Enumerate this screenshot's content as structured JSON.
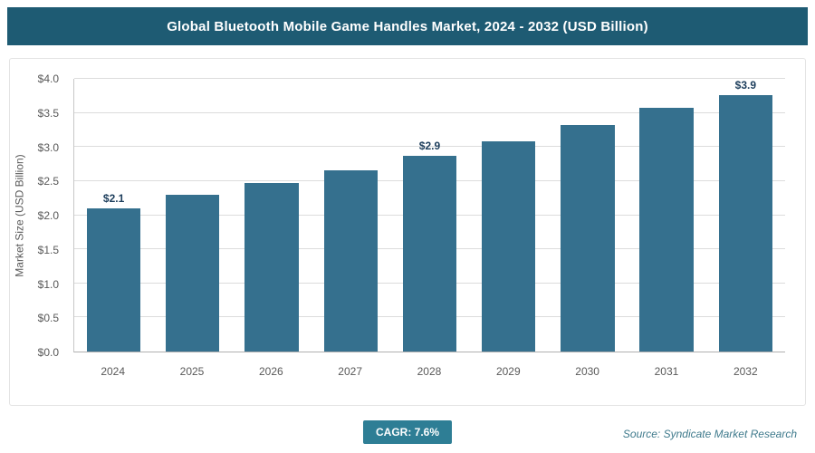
{
  "header": {
    "title": "Global Bluetooth Mobile Game Handles Market, 2024 - 2032 (USD Billion)"
  },
  "chart_data": {
    "type": "bar",
    "title": "Global Bluetooth Mobile Game Handles Market, 2024 - 2032 (USD Billion)",
    "categories": [
      "2024",
      "2025",
      "2026",
      "2027",
      "2028",
      "2029",
      "2030",
      "2031",
      "2032"
    ],
    "values": [
      2.1,
      2.3,
      2.47,
      2.66,
      2.87,
      3.08,
      3.32,
      3.57,
      3.85
    ],
    "data_labels": [
      "$2.1",
      null,
      null,
      null,
      "$2.9",
      null,
      null,
      null,
      "$3.9"
    ],
    "xlabel": "",
    "ylabel": "Market Size (USD Billion)",
    "ylim": [
      0,
      4
    ],
    "yticks": [
      "$0.0",
      "$0.5",
      "$1.0",
      "$1.5",
      "$2.0",
      "$2.5",
      "$3.0",
      "$3.5",
      "$4.0"
    ],
    "grid": true,
    "legend": "none",
    "bar_color": "#35708e",
    "header_color": "#1e5b73",
    "badge_color": "#2e7e95"
  },
  "footer": {
    "cagr_label": "CAGR: 7.6%",
    "source": "Source: Syndicate Market Research"
  }
}
